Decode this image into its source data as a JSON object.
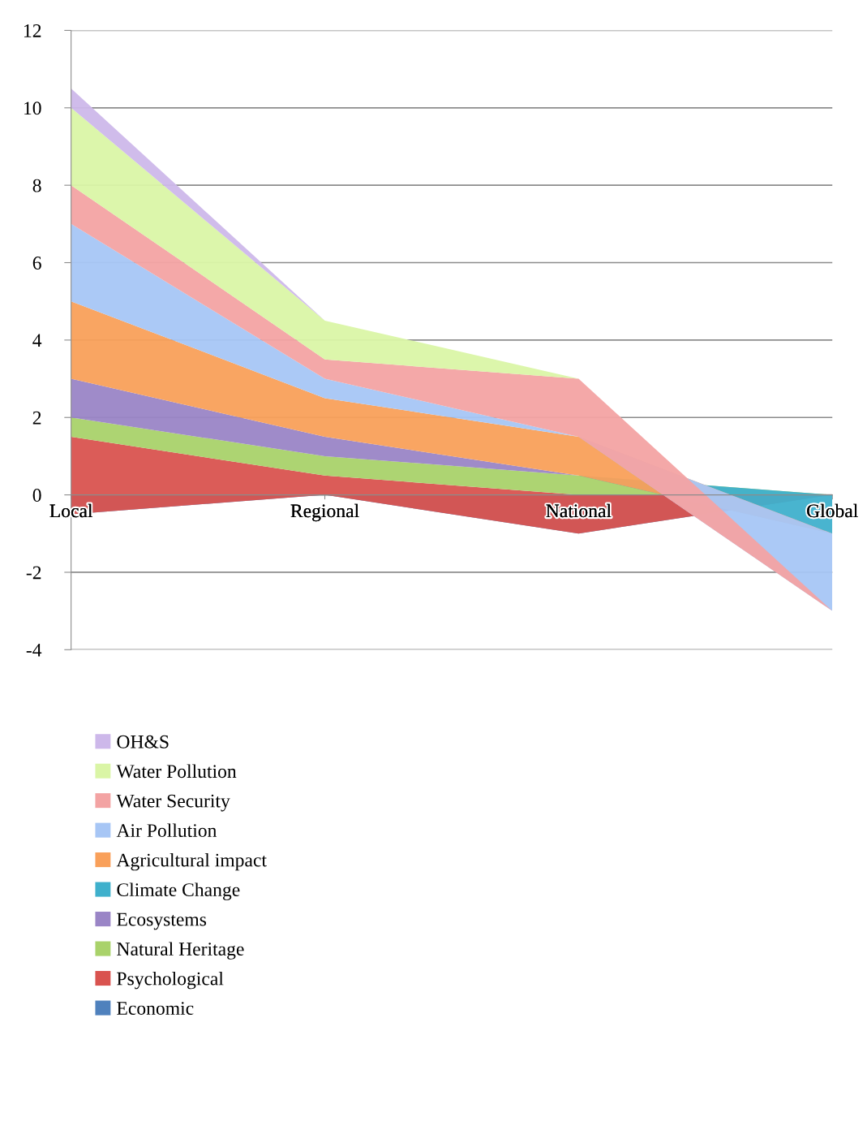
{
  "chart_data": {
    "type": "area",
    "stacked": true,
    "categories": [
      "Local",
      "Regional",
      "National",
      "Global"
    ],
    "series": [
      {
        "name": "Economic",
        "color": "#4f81bd",
        "values": [
          -0.5,
          0,
          -1,
          0
        ]
      },
      {
        "name": "Psychological",
        "color": "#d9534f",
        "values": [
          2,
          0.5,
          1,
          0
        ]
      },
      {
        "name": "Natural Heritage",
        "color": "#a9d26a",
        "values": [
          0.5,
          0.5,
          0.5,
          0
        ]
      },
      {
        "name": "Ecosystems",
        "color": "#9a85c6",
        "values": [
          1,
          0.5,
          0,
          0
        ]
      },
      {
        "name": "Climate Change",
        "color": "#3fb0cc",
        "values": [
          0,
          0,
          0,
          -1
        ]
      },
      {
        "name": "Agricultural impact",
        "color": "#f9a05a",
        "values": [
          2,
          1,
          1,
          0
        ]
      },
      {
        "name": "Air Pollution",
        "color": "#a7c6f5",
        "values": [
          2,
          0.5,
          0,
          -2
        ]
      },
      {
        "name": "Water Security",
        "color": "#f3a3a3",
        "values": [
          1,
          0.5,
          1.5,
          0
        ]
      },
      {
        "name": "Water Pollution",
        "color": "#daf5a6",
        "values": [
          2,
          1,
          0,
          0
        ]
      },
      {
        "name": "OH&S",
        "color": "#cdb8ea",
        "values": [
          0.5,
          0,
          0,
          0
        ]
      }
    ],
    "ylim": [
      -4,
      12
    ],
    "yticks": [
      -4,
      -2,
      0,
      2,
      4,
      6,
      8,
      10,
      12
    ],
    "grid": "y",
    "legend": "bottom left"
  }
}
